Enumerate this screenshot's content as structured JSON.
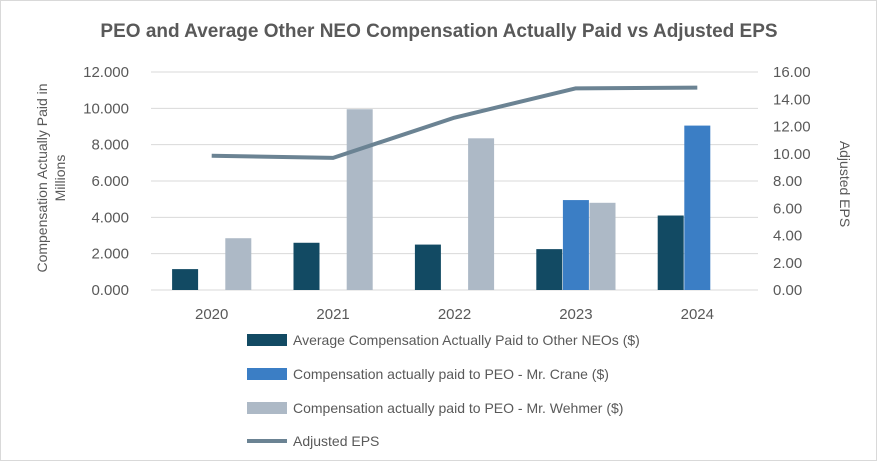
{
  "chart_data": {
    "type": "bar",
    "title": "PEO and Average Other NEO Compensation Actually Paid vs Adjusted EPS",
    "categories": [
      "2020",
      "2021",
      "2022",
      "2023",
      "2024"
    ],
    "ylabel": "Compensation Actually Paid in Millions",
    "ylabel_line1": "Compensation Actually Paid in",
    "ylabel_line2": "Millions",
    "y2label": "Adjusted EPS",
    "ylim": [
      0,
      12
    ],
    "y2lim": [
      0,
      16
    ],
    "y_ticks": [
      "0.000",
      "2.000",
      "4.000",
      "6.000",
      "8.000",
      "10.000",
      "12.000"
    ],
    "y2_ticks": [
      "0.00",
      "2.00",
      "4.00",
      "6.00",
      "8.00",
      "10.00",
      "12.00",
      "14.00",
      "16.00"
    ],
    "series": [
      {
        "name": "Average Compensation Actually Paid to Other NEOs ($)",
        "kind": "bar",
        "color": "#124a63",
        "values": [
          1.15,
          2.6,
          2.5,
          2.25,
          4.1
        ]
      },
      {
        "name": "Compensation actually paid to PEO - Mr. Crane ($)",
        "kind": "bar",
        "color": "#3b7ec5",
        "values": [
          null,
          null,
          null,
          4.95,
          9.05
        ]
      },
      {
        "name": "Compensation actually paid to PEO - Mr. Wehmer ($)",
        "kind": "bar",
        "color": "#adb9c6",
        "values": [
          2.85,
          9.95,
          8.35,
          4.8,
          null
        ]
      },
      {
        "name": "Adjusted EPS",
        "kind": "line",
        "axis": "secondary",
        "color": "#6b8393",
        "values": [
          9.85,
          9.7,
          12.65,
          14.8,
          14.85
        ]
      }
    ],
    "grid": true,
    "legend": "bottom"
  }
}
